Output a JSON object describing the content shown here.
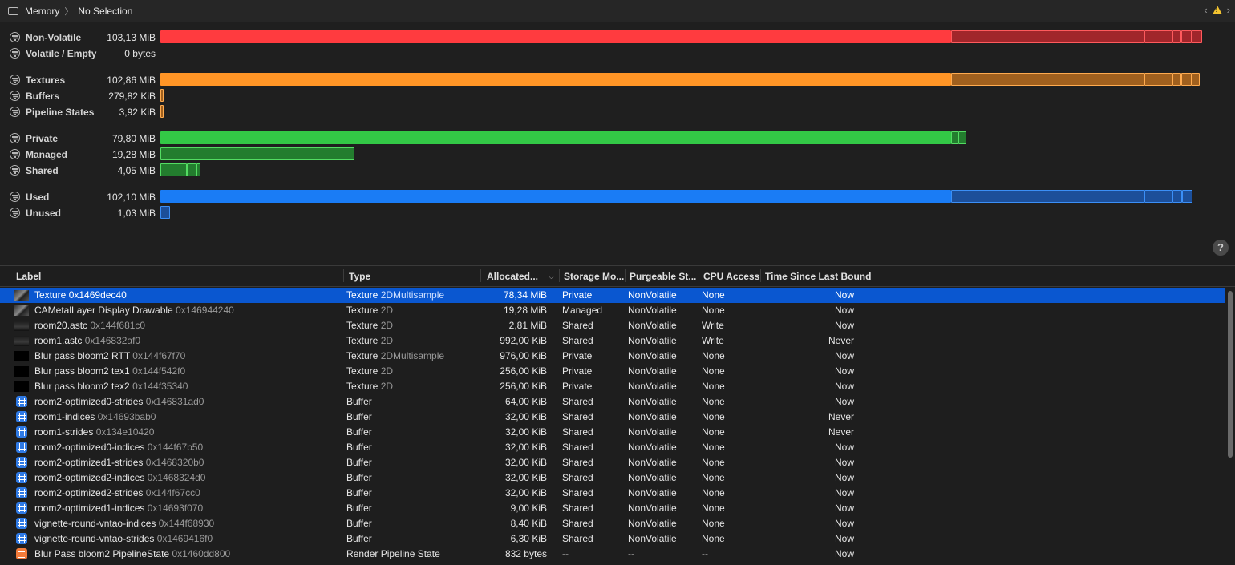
{
  "breadcrumb": {
    "root": "Memory",
    "separator": "〉",
    "current": "No Selection"
  },
  "colors": {
    "red": "#ff3b3f",
    "orange": "#ff9526",
    "green": "#33c846",
    "blue": "#1a7cf5",
    "selection": "#0a57d0"
  },
  "memory_rows": [
    {
      "label": "Non-Volatile",
      "value": "103,13 MiB",
      "color": "red"
    },
    {
      "label": "Volatile / Empty",
      "value": "0 bytes",
      "color": "red"
    },
    {
      "label": "Textures",
      "value": "102,86 MiB",
      "color": "orange"
    },
    {
      "label": "Buffers",
      "value": "279,82 KiB",
      "color": "orange"
    },
    {
      "label": "Pipeline States",
      "value": "3,92 KiB",
      "color": "orange"
    },
    {
      "label": "Private",
      "value": "79,80 MiB",
      "color": "green"
    },
    {
      "label": "Managed",
      "value": "19,28 MiB",
      "color": "green"
    },
    {
      "label": "Shared",
      "value": "4,05 MiB",
      "color": "green"
    },
    {
      "label": "Used",
      "value": "102,10 MiB",
      "color": "blue"
    },
    {
      "label": "Unused",
      "value": "1,03 MiB",
      "color": "blue"
    }
  ],
  "help_label": "?",
  "table": {
    "columns": {
      "label": "Label",
      "type": "Type",
      "allocated": "Allocated...",
      "storage": "Storage Mo...",
      "purgeable": "Purgeable St...",
      "cpu": "CPU Access",
      "time": "Time Since Last Bound"
    },
    "rows": [
      {
        "icon": "texture-thumb",
        "name": "Texture",
        "addr": "0x1469dec40",
        "type": "Texture",
        "subtype": "2DMultisample",
        "alloc": "78,34 MiB",
        "storage": "Private",
        "purge": "NonVolatile",
        "cpu": "None",
        "time": "Now"
      },
      {
        "icon": "texture-thumb",
        "name": "CAMetalLayer Display Drawable",
        "addr": "0x146944240",
        "type": "Texture",
        "subtype": "2D",
        "alloc": "19,28 MiB",
        "storage": "Managed",
        "purge": "NonVolatile",
        "cpu": "None",
        "time": "Now"
      },
      {
        "icon": "astc-thumb",
        "name": "room20.astc",
        "addr": "0x144f681c0",
        "type": "Texture",
        "subtype": "2D",
        "alloc": "2,81 MiB",
        "storage": "Shared",
        "purge": "NonVolatile",
        "cpu": "Write",
        "time": "Now"
      },
      {
        "icon": "astc-thumb",
        "name": "room1.astc",
        "addr": "0x146832af0",
        "type": "Texture",
        "subtype": "2D",
        "alloc": "992,00 KiB",
        "storage": "Shared",
        "purge": "NonVolatile",
        "cpu": "Write",
        "time": "Never"
      },
      {
        "icon": "black-thumb",
        "name": "Blur pass bloom2 RTT",
        "addr": "0x144f67f70",
        "type": "Texture",
        "subtype": "2DMultisample",
        "alloc": "976,00 KiB",
        "storage": "Private",
        "purge": "NonVolatile",
        "cpu": "None",
        "time": "Now"
      },
      {
        "icon": "black-thumb",
        "name": "Blur pass bloom2 tex1",
        "addr": "0x144f542f0",
        "type": "Texture",
        "subtype": "2D",
        "alloc": "256,00 KiB",
        "storage": "Private",
        "purge": "NonVolatile",
        "cpu": "None",
        "time": "Now"
      },
      {
        "icon": "black-thumb",
        "name": "Blur pass bloom2 tex2",
        "addr": "0x144f35340",
        "type": "Texture",
        "subtype": "2D",
        "alloc": "256,00 KiB",
        "storage": "Private",
        "purge": "NonVolatile",
        "cpu": "None",
        "time": "Now"
      },
      {
        "icon": "buffer-icon",
        "name": "room2-optimized0-strides",
        "addr": "0x146831ad0",
        "type": "Buffer",
        "subtype": "",
        "alloc": "64,00 KiB",
        "storage": "Shared",
        "purge": "NonVolatile",
        "cpu": "None",
        "time": "Now"
      },
      {
        "icon": "buffer-icon",
        "name": "room1-indices",
        "addr": "0x14693bab0",
        "type": "Buffer",
        "subtype": "",
        "alloc": "32,00 KiB",
        "storage": "Shared",
        "purge": "NonVolatile",
        "cpu": "None",
        "time": "Never"
      },
      {
        "icon": "buffer-icon",
        "name": "room1-strides",
        "addr": "0x134e10420",
        "type": "Buffer",
        "subtype": "",
        "alloc": "32,00 KiB",
        "storage": "Shared",
        "purge": "NonVolatile",
        "cpu": "None",
        "time": "Never"
      },
      {
        "icon": "buffer-icon",
        "name": "room2-optimized0-indices",
        "addr": "0x144f67b50",
        "type": "Buffer",
        "subtype": "",
        "alloc": "32,00 KiB",
        "storage": "Shared",
        "purge": "NonVolatile",
        "cpu": "None",
        "time": "Now"
      },
      {
        "icon": "buffer-icon",
        "name": "room2-optimized1-strides",
        "addr": "0x1468320b0",
        "type": "Buffer",
        "subtype": "",
        "alloc": "32,00 KiB",
        "storage": "Shared",
        "purge": "NonVolatile",
        "cpu": "None",
        "time": "Now"
      },
      {
        "icon": "buffer-icon",
        "name": "room2-optimized2-indices",
        "addr": "0x1468324d0",
        "type": "Buffer",
        "subtype": "",
        "alloc": "32,00 KiB",
        "storage": "Shared",
        "purge": "NonVolatile",
        "cpu": "None",
        "time": "Now"
      },
      {
        "icon": "buffer-icon",
        "name": "room2-optimized2-strides",
        "addr": "0x144f67cc0",
        "type": "Buffer",
        "subtype": "",
        "alloc": "32,00 KiB",
        "storage": "Shared",
        "purge": "NonVolatile",
        "cpu": "None",
        "time": "Now"
      },
      {
        "icon": "buffer-icon",
        "name": "room2-optimized1-indices",
        "addr": "0x14693f070",
        "type": "Buffer",
        "subtype": "",
        "alloc": "9,00 KiB",
        "storage": "Shared",
        "purge": "NonVolatile",
        "cpu": "None",
        "time": "Now"
      },
      {
        "icon": "buffer-icon",
        "name": "vignette-round-vntao-indices",
        "addr": "0x144f68930",
        "type": "Buffer",
        "subtype": "",
        "alloc": "8,40 KiB",
        "storage": "Shared",
        "purge": "NonVolatile",
        "cpu": "None",
        "time": "Now"
      },
      {
        "icon": "buffer-icon",
        "name": "vignette-round-vntao-strides",
        "addr": "0x1469416f0",
        "type": "Buffer",
        "subtype": "",
        "alloc": "6,30 KiB",
        "storage": "Shared",
        "purge": "NonVolatile",
        "cpu": "None",
        "time": "Now"
      },
      {
        "icon": "pipeline-state-icon",
        "name": "Blur Pass bloom2 PipelineState",
        "addr": "0x1460dd800",
        "type": "Render Pipeline State",
        "subtype": "",
        "alloc": "832 bytes",
        "storage": "--",
        "purge": "--",
        "cpu": "--",
        "time": "Now"
      }
    ]
  }
}
